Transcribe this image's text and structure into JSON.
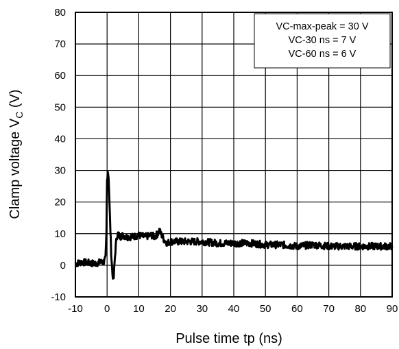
{
  "chart_data": {
    "type": "line",
    "title": "",
    "xlabel": "Pulse time  tp  (ns)",
    "ylabel": "Clamp voltage  V",
    "ylabel_subscript": "C",
    "ylabel_unit": "  (V)",
    "xlim": [
      -10,
      90
    ],
    "ylim": [
      -10,
      80
    ],
    "xticks": [
      -10,
      0,
      10,
      20,
      30,
      40,
      50,
      60,
      70,
      80,
      90
    ],
    "yticks": [
      -10,
      0,
      10,
      20,
      30,
      40,
      50,
      60,
      70,
      80
    ],
    "grid": true,
    "annotation": {
      "placement": "top-right",
      "lines": [
        "VC-max-peak = 30 V",
        "VC-30 ns = 7 V",
        "VC-60 ns = 6 V"
      ]
    },
    "series": [
      {
        "color": "#000000",
        "x": [
          -10,
          -8,
          -6,
          -4,
          -2,
          -1,
          -0.5,
          -0.2,
          0,
          0.2,
          0.5,
          0.9,
          1.3,
          1.7,
          2.1,
          2.5,
          3.0,
          3.5,
          4.0,
          5,
          6,
          8,
          10,
          12,
          14,
          15,
          16,
          16.5,
          17,
          18,
          19,
          20,
          22,
          25,
          30,
          35,
          40,
          45,
          50,
          55,
          60,
          65,
          70,
          75,
          80,
          85,
          90
        ],
        "y": [
          0.5,
          1,
          0.8,
          0.5,
          1,
          1,
          2,
          10,
          27,
          30,
          28,
          15,
          4,
          -3,
          -4,
          3,
          9,
          10,
          9,
          9.5,
          9,
          9,
          9.5,
          9,
          9.5,
          9,
          10,
          11,
          10,
          8,
          7,
          7.5,
          7.5,
          7.5,
          7.5,
          7,
          7,
          7,
          6.5,
          6.5,
          6,
          6.5,
          6,
          6,
          6,
          6,
          6
        ]
      }
    ]
  }
}
